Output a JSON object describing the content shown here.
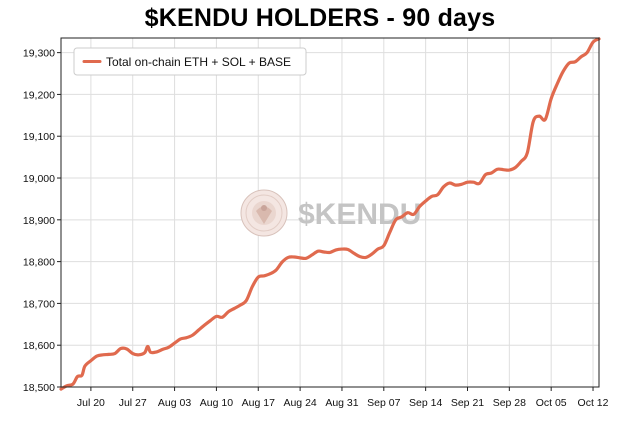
{
  "chart_data": {
    "type": "line",
    "title": "$KENDU HOLDERS - 90 days",
    "xlabel": "",
    "ylabel": "",
    "ylim": [
      18500,
      19335
    ],
    "xlim": [
      "2024-07-15",
      "2024-10-13"
    ],
    "yticks": [
      18500,
      18600,
      18700,
      18800,
      18900,
      19000,
      19100,
      19200,
      19300
    ],
    "ytick_labels": [
      "18,500",
      "18,600",
      "18,700",
      "18,800",
      "18,900",
      "19,000",
      "19,100",
      "19,200",
      "19,300"
    ],
    "xticks": [
      "2024-07-20",
      "2024-07-27",
      "2024-08-03",
      "2024-08-10",
      "2024-08-17",
      "2024-08-24",
      "2024-08-31",
      "2024-09-07",
      "2024-09-14",
      "2024-09-21",
      "2024-09-28",
      "2024-10-05",
      "2024-10-12"
    ],
    "xtick_labels": [
      "Jul 20",
      "Jul 27",
      "Aug 03",
      "Aug 10",
      "Aug 17",
      "Aug 24",
      "Aug 31",
      "Sep 07",
      "Sep 14",
      "Sep 21",
      "Sep 28",
      "Oct 05",
      "Oct 12"
    ],
    "grid": true,
    "legend_position": "top-left",
    "watermark_text": "$KENDU",
    "series": [
      {
        "name": "Total on-chain ETH + SOL + BASE",
        "color": "#e06a4e",
        "points": [
          [
            "2024-07-15",
            18495
          ],
          [
            "2024-07-16",
            18503
          ],
          [
            "2024-07-17",
            18507
          ],
          [
            "2024-07-17T18:00",
            18525
          ],
          [
            "2024-07-18T12:00",
            18528
          ],
          [
            "2024-07-19",
            18550
          ],
          [
            "2024-07-20",
            18563
          ],
          [
            "2024-07-21",
            18574
          ],
          [
            "2024-07-22",
            18577
          ],
          [
            "2024-07-23",
            18578
          ],
          [
            "2024-07-24",
            18580
          ],
          [
            "2024-07-25",
            18592
          ],
          [
            "2024-07-26",
            18591
          ],
          [
            "2024-07-27",
            18580
          ],
          [
            "2024-07-28",
            18577
          ],
          [
            "2024-07-29",
            18582
          ],
          [
            "2024-07-29T12:00",
            18597
          ],
          [
            "2024-07-30",
            18583
          ],
          [
            "2024-07-31",
            18584
          ],
          [
            "2024-08-01",
            18590
          ],
          [
            "2024-08-02",
            18595
          ],
          [
            "2024-08-03",
            18605
          ],
          [
            "2024-08-04",
            18615
          ],
          [
            "2024-08-05",
            18618
          ],
          [
            "2024-08-06",
            18624
          ],
          [
            "2024-08-07",
            18636
          ],
          [
            "2024-08-08",
            18648
          ],
          [
            "2024-08-09",
            18659
          ],
          [
            "2024-08-10",
            18669
          ],
          [
            "2024-08-11",
            18667
          ],
          [
            "2024-08-12",
            18680
          ],
          [
            "2024-08-13",
            18688
          ],
          [
            "2024-08-14",
            18696
          ],
          [
            "2024-08-15",
            18707
          ],
          [
            "2024-08-16",
            18740
          ],
          [
            "2024-08-17",
            18763
          ],
          [
            "2024-08-18",
            18766
          ],
          [
            "2024-08-19",
            18771
          ],
          [
            "2024-08-20",
            18780
          ],
          [
            "2024-08-21",
            18799
          ],
          [
            "2024-08-22",
            18810
          ],
          [
            "2024-08-23",
            18811
          ],
          [
            "2024-08-24",
            18809
          ],
          [
            "2024-08-25",
            18808
          ],
          [
            "2024-08-26",
            18816
          ],
          [
            "2024-08-27",
            18825
          ],
          [
            "2024-08-28",
            18823
          ],
          [
            "2024-08-29",
            18822
          ],
          [
            "2024-08-30",
            18828
          ],
          [
            "2024-08-31",
            18830
          ],
          [
            "2024-09-01",
            18829
          ],
          [
            "2024-09-02",
            18820
          ],
          [
            "2024-09-03",
            18812
          ],
          [
            "2024-09-04",
            18810
          ],
          [
            "2024-09-05",
            18818
          ],
          [
            "2024-09-06",
            18830
          ],
          [
            "2024-09-07",
            18838
          ],
          [
            "2024-09-08",
            18870
          ],
          [
            "2024-09-09",
            18900
          ],
          [
            "2024-09-10",
            18907
          ],
          [
            "2024-09-11",
            18917
          ],
          [
            "2024-09-12",
            18913
          ],
          [
            "2024-09-13",
            18932
          ],
          [
            "2024-09-14",
            18945
          ],
          [
            "2024-09-15",
            18956
          ],
          [
            "2024-09-16",
            18960
          ],
          [
            "2024-09-17",
            18979
          ],
          [
            "2024-09-18",
            18988
          ],
          [
            "2024-09-19",
            18983
          ],
          [
            "2024-09-20",
            18985
          ],
          [
            "2024-09-21",
            18990
          ],
          [
            "2024-09-22",
            18990
          ],
          [
            "2024-09-23",
            18987
          ],
          [
            "2024-09-24",
            19008
          ],
          [
            "2024-09-25",
            19012
          ],
          [
            "2024-09-26",
            19021
          ],
          [
            "2024-09-27",
            19020
          ],
          [
            "2024-09-28",
            19019
          ],
          [
            "2024-09-29",
            19025
          ],
          [
            "2024-09-30",
            19040
          ],
          [
            "2024-10-01",
            19060
          ],
          [
            "2024-10-02",
            19135
          ],
          [
            "2024-10-03",
            19148
          ],
          [
            "2024-10-04",
            19140
          ],
          [
            "2024-10-05",
            19190
          ],
          [
            "2024-10-06",
            19225
          ],
          [
            "2024-10-07",
            19255
          ],
          [
            "2024-10-08",
            19275
          ],
          [
            "2024-10-09",
            19278
          ],
          [
            "2024-10-10",
            19290
          ],
          [
            "2024-10-11",
            19300
          ],
          [
            "2024-10-12",
            19325
          ],
          [
            "2024-10-13",
            19333
          ]
        ]
      }
    ]
  }
}
